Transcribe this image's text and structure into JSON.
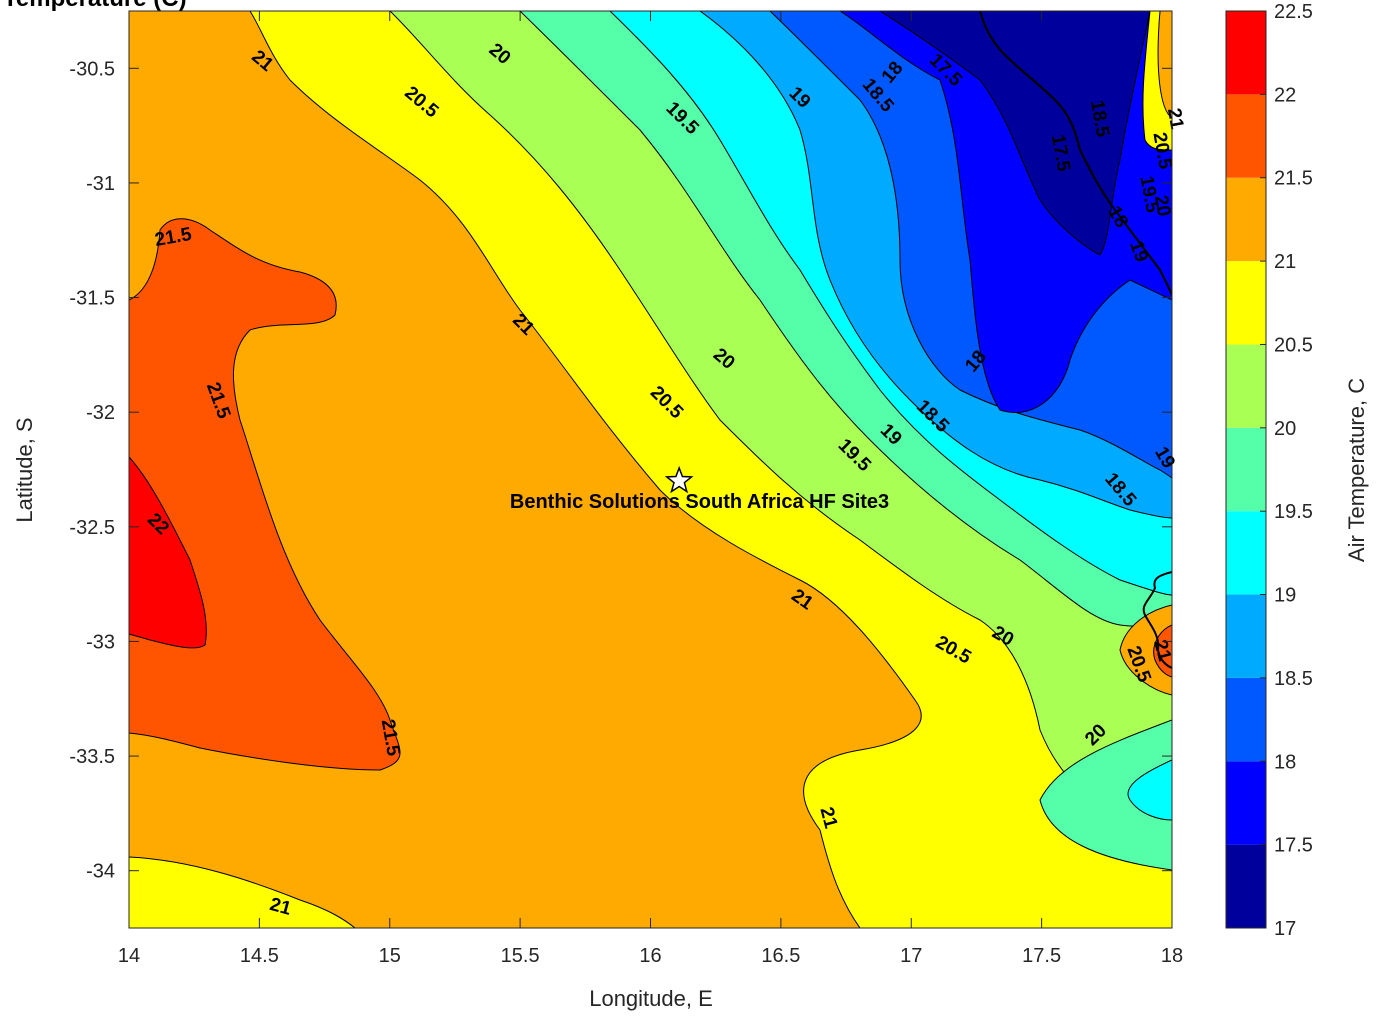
{
  "title": "Temperature (C)",
  "chart_data": {
    "type": "contour",
    "xlabel": "Longitude, E",
    "ylabel": "Latitude, S",
    "xlim": [
      14,
      18
    ],
    "ylim": [
      -34.25,
      -30.25
    ],
    "xticks": [
      14,
      14.5,
      15,
      15.5,
      16,
      16.5,
      17,
      17.5,
      18
    ],
    "xtick_labels": [
      "14",
      "14.5",
      "15",
      "15.5",
      "16",
      "16.5",
      "17",
      "17.5",
      "18"
    ],
    "yticks": [
      -30.5,
      -31,
      -31.5,
      -32,
      -32.5,
      -33,
      -33.5,
      -34
    ],
    "ytick_labels": [
      "-30.5",
      "-31",
      "-31.5",
      "-32",
      "-32.5",
      "-33",
      "-33.5",
      "-34"
    ],
    "colorbar": {
      "label": "Air Temperature, C",
      "levels": [
        17,
        17.5,
        18,
        18.5,
        19,
        19.5,
        20,
        20.5,
        21,
        21.5,
        22,
        22.5
      ],
      "tick_labels": [
        "17",
        "17.5",
        "18",
        "18.5",
        "19",
        "19.5",
        "20",
        "20.5",
        "21",
        "21.5",
        "22",
        "22.5"
      ],
      "colors": [
        "#00009c",
        "#0000ff",
        "#0059ff",
        "#00aaff",
        "#00ffff",
        "#55ffaa",
        "#aaff55",
        "#ffff00",
        "#ffaa00",
        "#ff5500",
        "#ff0000"
      ]
    },
    "site_marker": {
      "label": "Benthic Solutions South Africa HF Site3",
      "lon": 16.11,
      "lat": -32.3
    },
    "contour_labels": [
      {
        "text": "21",
        "lon": 14.51,
        "lat": -30.47,
        "angle": 40
      },
      {
        "text": "20",
        "lon": 15.42,
        "lat": -30.44,
        "angle": 40
      },
      {
        "text": "20.5",
        "lon": 15.12,
        "lat": -30.65,
        "angle": 40
      },
      {
        "text": "19.5",
        "lon": 16.12,
        "lat": -30.72,
        "angle": 45
      },
      {
        "text": "19",
        "lon": 16.57,
        "lat": -30.63,
        "angle": 45
      },
      {
        "text": "18",
        "lon": 16.93,
        "lat": -30.52,
        "angle": -50
      },
      {
        "text": "17.5",
        "lon": 17.13,
        "lat": -30.51,
        "angle": 45
      },
      {
        "text": "18.5",
        "lon": 16.87,
        "lat": -30.62,
        "angle": 50
      },
      {
        "text": "17.5",
        "lon": 17.57,
        "lat": -30.87,
        "angle": 80
      },
      {
        "text": "18.5",
        "lon": 17.72,
        "lat": -30.72,
        "angle": 80
      },
      {
        "text": "21",
        "lon": 18.01,
        "lat": -30.72,
        "angle": 80
      },
      {
        "text": "20.5",
        "lon": 17.96,
        "lat": -30.86,
        "angle": 80
      },
      {
        "text": "19.5",
        "lon": 17.91,
        "lat": -31.05,
        "angle": 80
      },
      {
        "text": "20",
        "lon": 17.96,
        "lat": -31.1,
        "angle": 80
      },
      {
        "text": "18",
        "lon": 17.79,
        "lat": -31.15,
        "angle": 60
      },
      {
        "text": "19",
        "lon": 17.87,
        "lat": -31.3,
        "angle": 70
      },
      {
        "text": "21.5",
        "lon": 14.17,
        "lat": -31.24,
        "angle": -10
      },
      {
        "text": "21",
        "lon": 15.51,
        "lat": -31.62,
        "angle": 45
      },
      {
        "text": "20",
        "lon": 16.28,
        "lat": -31.77,
        "angle": 40
      },
      {
        "text": "18",
        "lon": 17.25,
        "lat": -31.78,
        "angle": -50
      },
      {
        "text": "21.5",
        "lon": 14.34,
        "lat": -31.95,
        "angle": 70
      },
      {
        "text": "20.5",
        "lon": 16.06,
        "lat": -31.96,
        "angle": 45
      },
      {
        "text": "18.5",
        "lon": 17.08,
        "lat": -32.02,
        "angle": 45
      },
      {
        "text": "19",
        "lon": 16.92,
        "lat": -32.1,
        "angle": 45
      },
      {
        "text": "19.5",
        "lon": 16.78,
        "lat": -32.19,
        "angle": 45
      },
      {
        "text": "19",
        "lon": 17.97,
        "lat": -32.2,
        "angle": 60
      },
      {
        "text": "18.5",
        "lon": 17.8,
        "lat": -32.34,
        "angle": 50
      },
      {
        "text": "22",
        "lon": 14.11,
        "lat": -32.49,
        "angle": 45
      },
      {
        "text": "21",
        "lon": 16.58,
        "lat": -32.82,
        "angle": 35
      },
      {
        "text": "20",
        "lon": 17.35,
        "lat": -32.98,
        "angle": 30
      },
      {
        "text": "20.5",
        "lon": 17.16,
        "lat": -33.04,
        "angle": 30
      },
      {
        "text": "21",
        "lon": 17.96,
        "lat": -33.04,
        "angle": 75
      },
      {
        "text": "20.5",
        "lon": 17.87,
        "lat": -33.1,
        "angle": 70
      },
      {
        "text": "20",
        "lon": 17.71,
        "lat": -33.41,
        "angle": -45
      },
      {
        "text": "21.5",
        "lon": 15.0,
        "lat": -33.42,
        "angle": 80
      },
      {
        "text": "21",
        "lon": 16.68,
        "lat": -33.77,
        "angle": 75
      },
      {
        "text": "21",
        "lon": 14.58,
        "lat": -34.16,
        "angle": 15
      }
    ]
  }
}
